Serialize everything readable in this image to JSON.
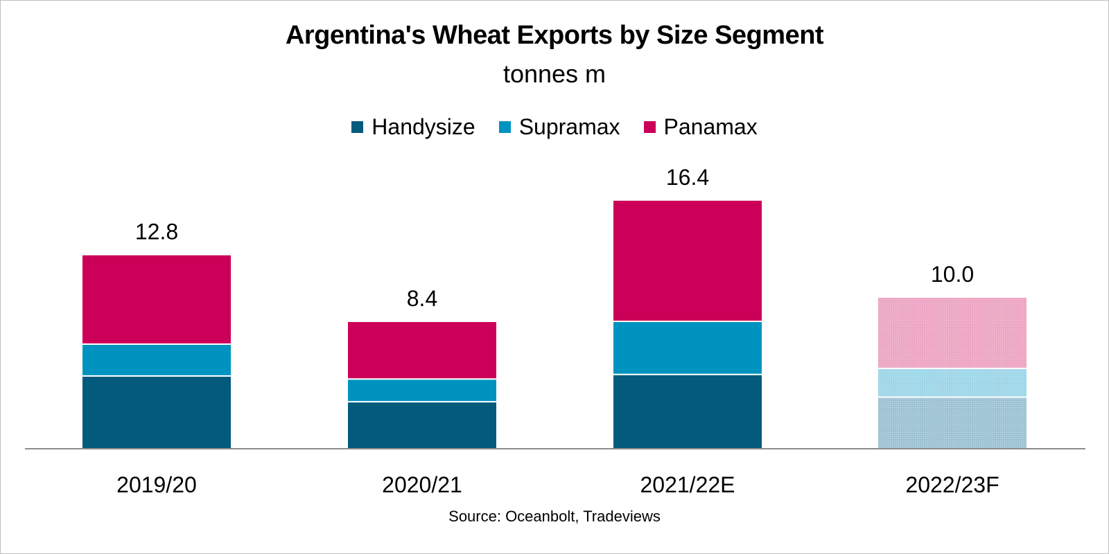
{
  "chart_data": {
    "type": "bar",
    "stacked": true,
    "title": "Argentina's Wheat Exports by Size Segment",
    "subtitle": "tonnes m",
    "categories": [
      "2019/20",
      "2020/21",
      "2021/22E",
      "2022/23F"
    ],
    "forecast_categories": [
      "2022/23F"
    ],
    "series": [
      {
        "name": "Handysize",
        "color": "#025a7d",
        "forecast_color": "#9ec3d3",
        "values": [
          4.8,
          3.1,
          4.9,
          3.4
        ]
      },
      {
        "name": "Supramax",
        "color": "#0093c0",
        "forecast_color": "#9fd7e9",
        "values": [
          2.1,
          1.5,
          3.5,
          1.9
        ]
      },
      {
        "name": "Panamax",
        "color": "#cc0058",
        "forecast_color": "#eda6c3",
        "values": [
          5.9,
          3.8,
          8.0,
          4.7
        ]
      }
    ],
    "totals": [
      "12.8",
      "8.4",
      "16.4",
      "10.0"
    ],
    "ylim": [
      0,
      20
    ],
    "grid": false,
    "legend_position": "top",
    "source": "Source: Oceanbolt, Tradeviews"
  }
}
